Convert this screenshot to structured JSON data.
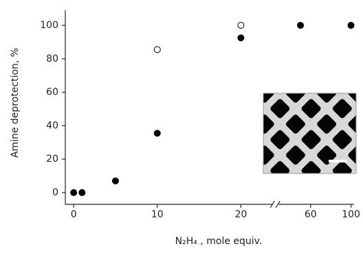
{
  "chart_data": {
    "type": "scatter",
    "xlabel": "N₂H₄ , mole equiv.",
    "ylabel": "Amine deprotection, %",
    "xlim": [
      -1,
      103
    ],
    "xbreak": [
      22,
      45
    ],
    "xticks": [
      0,
      10,
      20,
      60,
      100
    ],
    "ylim": [
      -7,
      109
    ],
    "yticks": [
      0,
      20,
      40,
      60,
      80,
      100
    ],
    "series": [
      {
        "color": "#000000",
        "filled": true,
        "x": [
          0,
          1,
          5,
          10,
          20,
          50,
          100
        ],
        "values": [
          0,
          0,
          7,
          35.5,
          92.5,
          100,
          100
        ]
      },
      {
        "color": "#000000",
        "filled": false,
        "x": [
          10,
          20
        ],
        "values": [
          85.5,
          100
        ]
      }
    ]
  }
}
